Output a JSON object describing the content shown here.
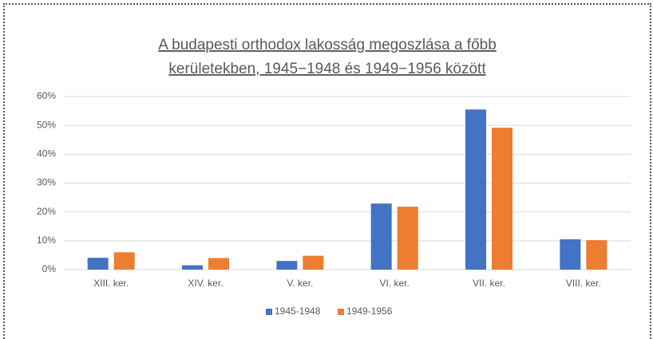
{
  "chart_data": {
    "type": "bar",
    "title": [
      "A budapesti orthodox lakosság megoszlása a főbb",
      "kerületekben, 1945−1948 és 1949−1956 között"
    ],
    "categories": [
      "XIII. ker.",
      "XIV. ker.",
      "V. ker.",
      "VI. ker.",
      "VII. ker.",
      "VIII. ker."
    ],
    "series": [
      {
        "name": "1945-1948",
        "color": "#4472c4",
        "values": [
          4.1,
          1.5,
          3,
          22.9,
          55.5,
          10.5
        ]
      },
      {
        "name": "1949-1956",
        "color": "#ed7d31",
        "values": [
          6,
          4,
          4.8,
          21.8,
          49.2,
          10.2
        ]
      }
    ],
    "ylim": [
      0,
      60
    ],
    "yticks": [
      {
        "value": 0,
        "label": "0%"
      },
      {
        "value": 10,
        "label": "10%"
      },
      {
        "value": 20,
        "label": "20%"
      },
      {
        "value": 30,
        "label": "30%"
      },
      {
        "value": 40,
        "label": "40%"
      },
      {
        "value": 50,
        "label": "50%"
      },
      {
        "value": 60,
        "label": "60%"
      }
    ],
    "grid": true,
    "legend": "bottom"
  }
}
